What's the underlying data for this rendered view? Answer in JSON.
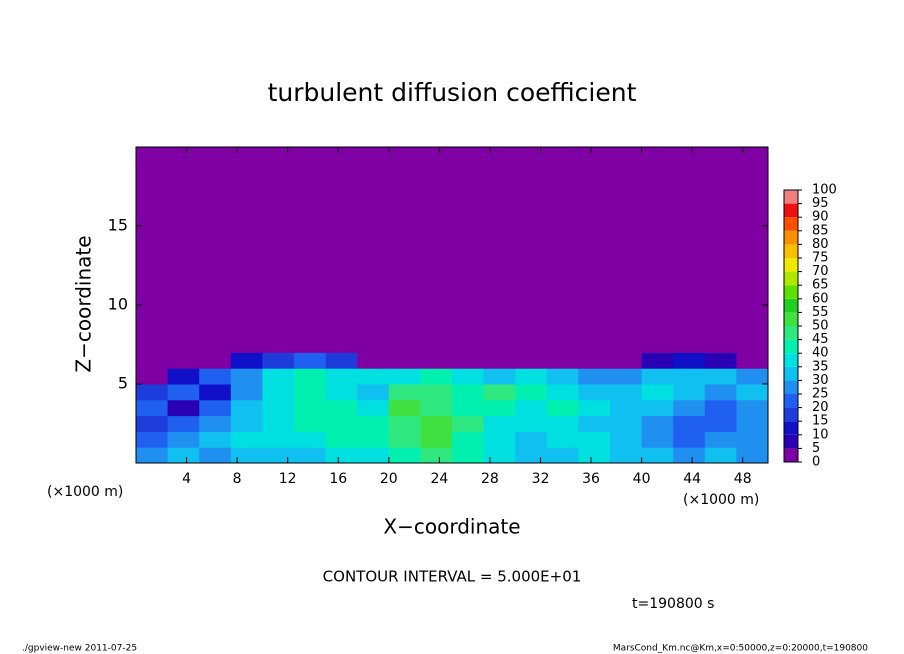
{
  "chart_data": {
    "type": "heatmap",
    "title": "turbulent diffusion coefficient",
    "xlabel": "X−coordinate",
    "ylabel": "Z−coordinate",
    "x_unit": "(×1000 m)",
    "y_unit": "(×1000 m)",
    "xlim": [
      0,
      50
    ],
    "ylim": [
      0,
      20
    ],
    "xticks": [
      4,
      8,
      12,
      16,
      20,
      24,
      28,
      32,
      36,
      40,
      44,
      48
    ],
    "yticks": [
      5,
      10,
      15
    ],
    "x_edges": [
      0,
      2.5,
      5,
      7.5,
      10,
      12.5,
      15,
      17.5,
      20,
      22.5,
      25,
      27.5,
      30,
      32.5,
      35,
      37.5,
      40,
      42.5,
      45,
      47.5,
      50
    ],
    "y_edges": [
      0,
      1,
      2,
      3,
      4,
      5,
      6,
      7,
      20
    ],
    "values": [
      [
        25,
        30,
        25,
        30,
        30,
        30,
        35,
        35,
        40,
        45,
        40,
        35,
        30,
        30,
        35,
        30,
        30,
        25,
        30,
        25
      ],
      [
        20,
        25,
        30,
        35,
        35,
        35,
        40,
        40,
        45,
        50,
        40,
        35,
        30,
        35,
        35,
        30,
        25,
        20,
        25,
        25
      ],
      [
        15,
        20,
        25,
        30,
        35,
        40,
        40,
        40,
        45,
        50,
        45,
        35,
        35,
        35,
        30,
        30,
        25,
        20,
        20,
        25
      ],
      [
        20,
        5,
        20,
        30,
        35,
        40,
        40,
        35,
        50,
        45,
        40,
        40,
        35,
        40,
        35,
        30,
        30,
        25,
        20,
        25
      ],
      [
        15,
        20,
        10,
        25,
        35,
        40,
        35,
        30,
        45,
        45,
        40,
        45,
        40,
        35,
        30,
        30,
        35,
        30,
        25,
        30
      ],
      [
        0,
        10,
        20,
        25,
        35,
        40,
        35,
        35,
        35,
        40,
        35,
        30,
        35,
        30,
        25,
        25,
        30,
        30,
        30,
        25
      ],
      [
        0,
        0,
        0,
        10,
        15,
        20,
        15,
        0,
        0,
        0,
        0,
        0,
        0,
        0,
        0,
        0,
        5,
        10,
        5,
        0
      ],
      [
        0,
        0,
        0,
        0,
        0,
        0,
        0,
        0,
        0,
        0,
        0,
        0,
        0,
        0,
        0,
        0,
        0,
        0,
        0,
        0
      ]
    ],
    "colorbar": {
      "levels": [
        0,
        5,
        10,
        15,
        20,
        25,
        30,
        35,
        40,
        45,
        50,
        55,
        60,
        65,
        70,
        75,
        80,
        85,
        90,
        95,
        100
      ],
      "colors": [
        "#7f00a3",
        "#2a00b4",
        "#1010c8",
        "#1e3cdc",
        "#2060f0",
        "#2090f0",
        "#10c0f0",
        "#00e0e0",
        "#00f0b0",
        "#30e880",
        "#40e040",
        "#20d020",
        "#60e000",
        "#b0e800",
        "#f0e800",
        "#f8c000",
        "#f89000",
        "#f85000",
        "#f01010",
        "#f08080"
      ]
    },
    "annotation": "CONTOUR INTERVAL = 5.000E+01",
    "time_label": "t=190800 s",
    "footer_left": "./gpview-new  2011-07-25",
    "footer_right": "MarsCond_Km.nc@Km,x=0:50000,z=0:20000,t=190800"
  }
}
